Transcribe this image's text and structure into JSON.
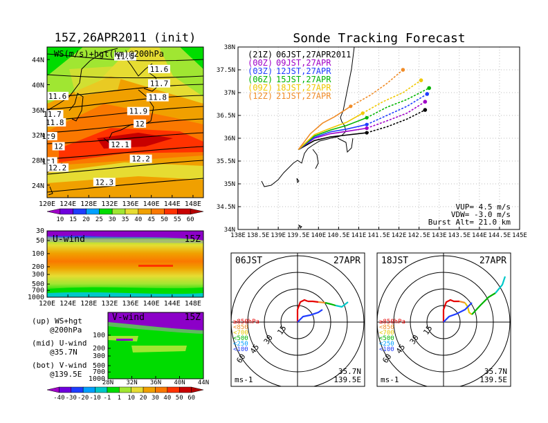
{
  "chart_data": [
    {
      "type": "heatmap",
      "panel": "map-ws-hgt",
      "title": "15Z,26APR2011 (init)",
      "inner_label": "WS(m/s)+hgt(km)@200hPa",
      "x_ticks": [
        "120E",
        "124E",
        "128E",
        "132E",
        "136E",
        "140E",
        "144E",
        "148E"
      ],
      "y_ticks": [
        "24N",
        "28N",
        "32N",
        "36N",
        "40N",
        "44N"
      ],
      "contours": [
        {
          "label": "11.5",
          "lon": 135.0,
          "lat": 44.5
        },
        {
          "label": "11.6",
          "lon": 141.5,
          "lat": 42.5
        },
        {
          "label": "11.6",
          "lon": 122.0,
          "lat": 38.2
        },
        {
          "label": "11.7",
          "lon": 141.5,
          "lat": 40.2
        },
        {
          "label": "11.7",
          "lon": 121.0,
          "lat": 35.3
        },
        {
          "label": "11.8",
          "lon": 141.2,
          "lat": 38.0
        },
        {
          "label": "11.8",
          "lon": 121.5,
          "lat": 34.0
        },
        {
          "label": "11.9",
          "lon": 137.5,
          "lat": 35.8
        },
        {
          "label": "1.9",
          "lon": 120.3,
          "lat": 31.8
        },
        {
          "label": "12",
          "lon": 137.8,
          "lat": 33.8
        },
        {
          "label": "12",
          "lon": 122.2,
          "lat": 30.2
        },
        {
          "label": "12.1",
          "lon": 134.0,
          "lat": 30.5
        },
        {
          "label": "1.1",
          "lon": 120.3,
          "lat": 27.8
        },
        {
          "label": "12.2",
          "lon": 138.0,
          "lat": 28.2
        },
        {
          "label": "12.2",
          "lon": 122.0,
          "lat": 26.8
        },
        {
          "label": "12.3",
          "lon": 131.0,
          "lat": 24.5
        }
      ],
      "colorbar": [
        "10",
        "15",
        "20",
        "25",
        "30",
        "35",
        "40",
        "45",
        "50",
        "55",
        "60"
      ],
      "colorbar_colors": [
        "#a000c8",
        "#6e00dc",
        "#1e3cff",
        "#00a0ff",
        "#00dc00",
        "#a0e632",
        "#e6dc32",
        "#f0a000",
        "#fa7800",
        "#ff3200",
        "#c80000",
        "#b40000"
      ]
    },
    {
      "type": "heatmap",
      "panel": "u-wind",
      "label": "U-wind",
      "time": "15Z",
      "x_ticks": [
        "120E",
        "124E",
        "128E",
        "132E",
        "136E",
        "140E",
        "144E",
        "148E"
      ],
      "y_ticks": [
        "30",
        "50",
        "100",
        "200",
        "300",
        "500",
        "700",
        "1000"
      ]
    },
    {
      "type": "heatmap",
      "panel": "v-wind",
      "label": "V-wind",
      "time": "15Z",
      "x_ticks": [
        "28N",
        "32N",
        "36N",
        "40N",
        "44N"
      ],
      "y_ticks": [
        "100",
        "200",
        "300",
        "500",
        "700",
        "1000"
      ],
      "colorbar": [
        "-40",
        "-30",
        "-20",
        "-10",
        "-1",
        "1",
        "10",
        "20",
        "30",
        "40",
        "50",
        "60"
      ],
      "colorbar_colors": [
        "#a000c8",
        "#6e00dc",
        "#1e3cff",
        "#00a0ff",
        "#00c8c8",
        "#00dc00",
        "#a0e632",
        "#e6dc32",
        "#f0a000",
        "#fa7800",
        "#ff3200",
        "#c80000",
        "#b40000"
      ]
    },
    {
      "type": "line",
      "panel": "sonde-tracking",
      "title": "Sonde Tracking Forecast",
      "x_ticks": [
        "138E",
        "138.5E",
        "139E",
        "139.5E",
        "140E",
        "140.5E",
        "141E",
        "141.5E",
        "142E",
        "142.5E",
        "143E",
        "143.5E",
        "144E",
        "144.5E",
        "145E"
      ],
      "y_ticks": [
        "34N",
        "34.5N",
        "35N",
        "35.5N",
        "36N",
        "36.5N",
        "37N",
        "37.5N",
        "38N"
      ],
      "xlim": [
        138,
        145
      ],
      "ylim": [
        34,
        38
      ],
      "series": [
        {
          "legend_a": "(21Z)",
          "legend_b": "06JST,27APR2011",
          "color": "#000000",
          "x": [
            139.5,
            139.9,
            140.3,
            140.7,
            141.2,
            141.7,
            142.2,
            142.65
          ],
          "y": [
            35.75,
            35.95,
            36.03,
            36.07,
            36.12,
            36.25,
            36.42,
            36.62
          ]
        },
        {
          "legend_a": "(00Z)",
          "legend_b": "09JST,27APR",
          "color": "#a000c8",
          "x": [
            139.5,
            139.9,
            140.3,
            140.7,
            141.2,
            141.7,
            142.2,
            142.65
          ],
          "y": [
            35.75,
            36.0,
            36.1,
            36.15,
            36.22,
            36.38,
            36.55,
            36.8
          ]
        },
        {
          "legend_a": "(03Z)",
          "legend_b": "12JST,27APR",
          "color": "#1e3cff",
          "x": [
            139.5,
            139.9,
            140.3,
            140.7,
            141.2,
            141.7,
            142.2,
            142.7
          ],
          "y": [
            35.75,
            36.02,
            36.14,
            36.2,
            36.3,
            36.5,
            36.7,
            36.97
          ]
        },
        {
          "legend_a": "(06Z)",
          "legend_b": "15JST,27APR",
          "color": "#00b400",
          "x": [
            139.5,
            139.9,
            140.3,
            140.7,
            141.2,
            141.7,
            142.2,
            142.75
          ],
          "y": [
            35.75,
            36.05,
            36.18,
            36.28,
            36.45,
            36.68,
            36.85,
            37.1
          ]
        },
        {
          "legend_a": "(09Z)",
          "legend_b": "18JST,27APR",
          "color": "#f0c800",
          "x": [
            139.5,
            139.9,
            140.3,
            140.7,
            141.1,
            141.6,
            142.1,
            142.55
          ],
          "y": [
            35.75,
            36.08,
            36.22,
            36.35,
            36.55,
            36.8,
            37.0,
            37.27
          ]
        },
        {
          "legend_a": "(12Z)",
          "legend_b": "21JST,27APR",
          "color": "#f08c28",
          "x": [
            139.5,
            139.8,
            140.1,
            140.4,
            140.8,
            141.3,
            141.7,
            142.1
          ],
          "y": [
            35.75,
            36.1,
            36.33,
            36.47,
            36.7,
            36.95,
            37.2,
            37.5
          ]
        }
      ],
      "params": [
        "VUP= 4.5 m/s",
        "VDW= -3.0 m/s",
        "Burst Alt= 21.0 km"
      ]
    },
    {
      "type": "line",
      "panel": "hodograph-06",
      "time_label": "06JST",
      "date_label": "27APR",
      "ring_labels": [
        "15",
        "30",
        "45",
        "60"
      ],
      "legend": [
        "≥850hPa",
        "<850",
        "<700",
        "<500",
        "<250",
        "<100"
      ],
      "legend_colors": [
        "#e60000",
        "#f08c28",
        "#e6c800",
        "#00b400",
        "#00a0ff",
        "#1e3cff"
      ],
      "location": [
        "35.7N",
        "139.5E"
      ],
      "unit": "ms-1"
    },
    {
      "type": "line",
      "panel": "hodograph-18",
      "time_label": "18JST",
      "date_label": "27APR",
      "ring_labels": [
        "15",
        "30",
        "45",
        "60"
      ],
      "legend": [
        "≥850hPa",
        "<850",
        "<700",
        "<500",
        "<250",
        "<100"
      ],
      "legend_colors": [
        "#e60000",
        "#f08c28",
        "#e6c800",
        "#00b400",
        "#00a0ff",
        "#1e3cff"
      ],
      "location": [
        "35.7N",
        "139.5E"
      ],
      "unit": "ms-1"
    }
  ],
  "notes": {
    "up_a": "(up) WS+hgt",
    "up_b": "@200hPa",
    "mid_a": "(mid) U-wind",
    "mid_b": "@35.7N",
    "bot_a": "(bot) V-wind",
    "bot_b": "@139.5E"
  }
}
